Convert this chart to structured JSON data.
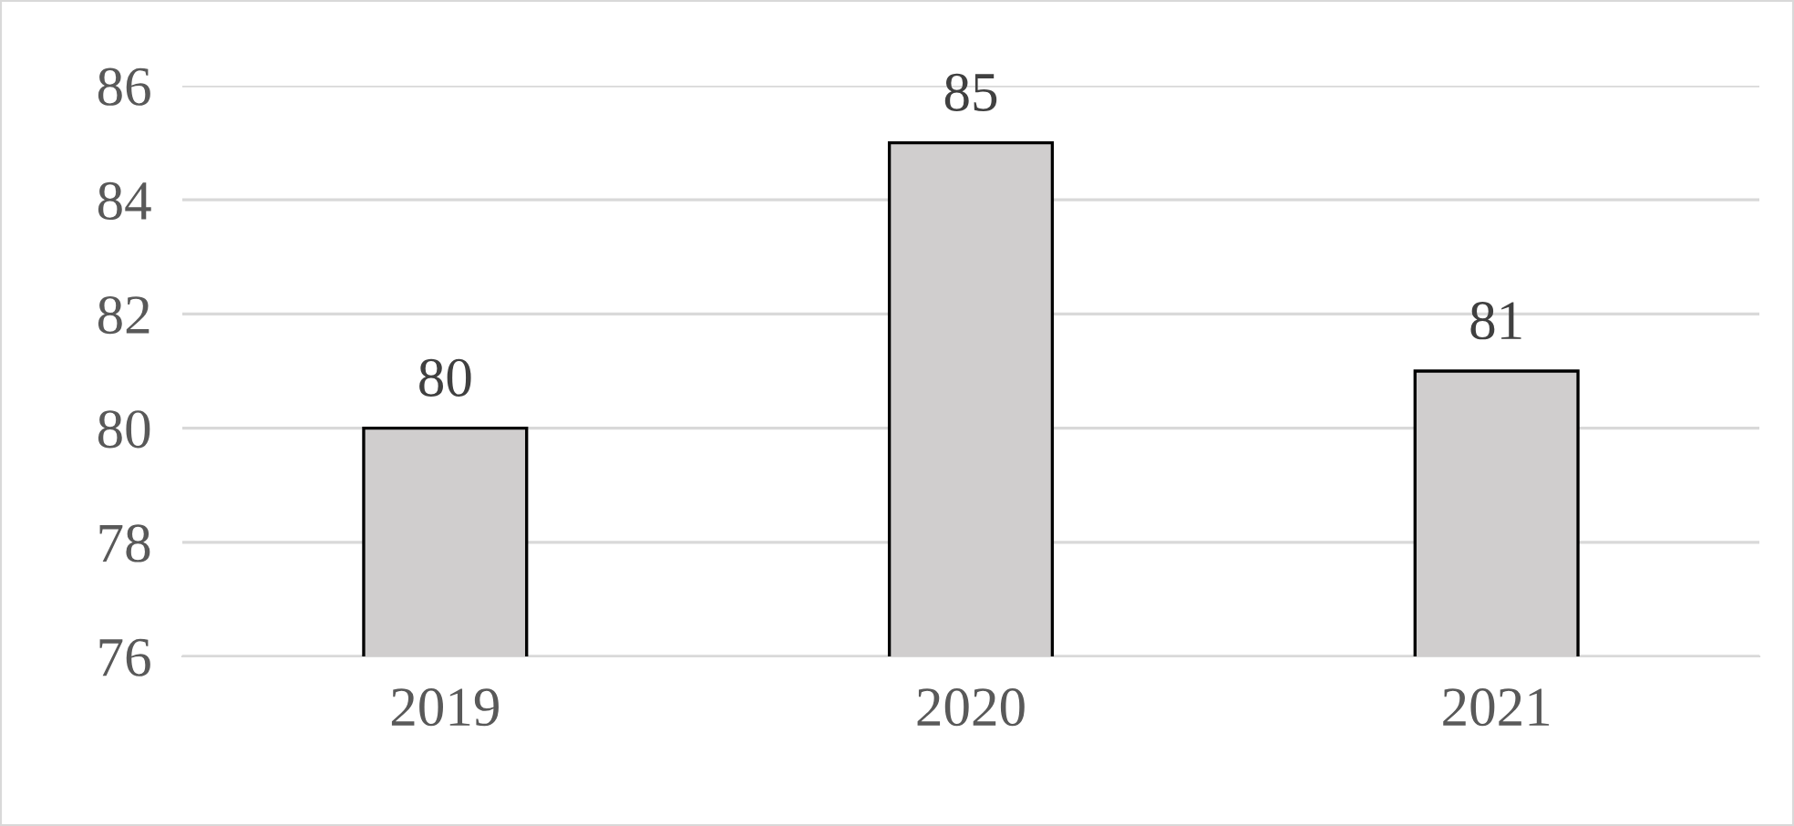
{
  "chart_data": {
    "type": "bar",
    "categories": [
      "2019",
      "2020",
      "2021"
    ],
    "values": [
      80,
      85,
      81
    ],
    "color": "#d0cece",
    "ylim": [
      76,
      86
    ],
    "yticks": [
      76,
      78,
      80,
      82,
      84,
      86
    ],
    "grid": "y",
    "data_labels": true
  }
}
